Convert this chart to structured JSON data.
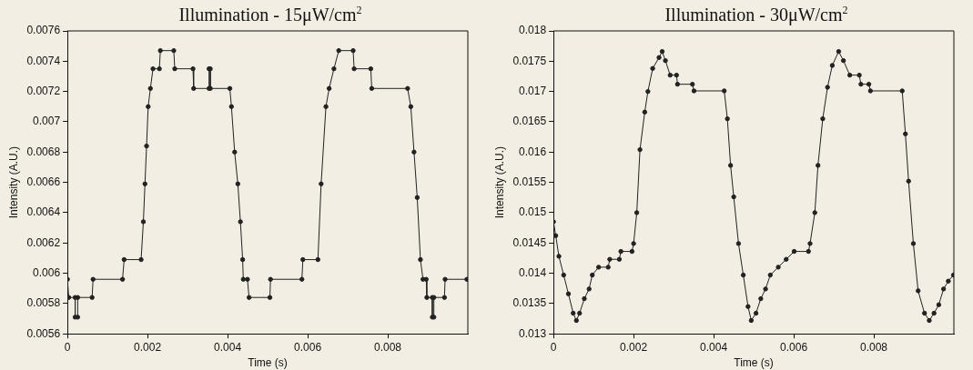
{
  "chart_data": [
    {
      "type": "line",
      "title": "Illumination - 15μW/cm$^{2}$",
      "xlabel": "Time (s)",
      "ylabel": "Intensity (A.U.)",
      "xlim": [
        0,
        0.01
      ],
      "xticks": [
        0,
        0.002,
        0.004,
        0.006,
        0.008
      ],
      "ylim": [
        0.0056,
        0.0076
      ],
      "yticks": [
        0.0056,
        0.0058,
        0.006,
        0.0062,
        0.0064,
        0.0066,
        0.0068,
        0.007,
        0.0072,
        0.0074,
        0.0076
      ],
      "grid": false,
      "legend": false,
      "marker": "circle",
      "line_style": "solid",
      "series": [
        {
          "color": "#222222",
          "x": [
            0,
            3.2e-05,
            0.000192,
            0.000192,
            0.000256,
            0.000256,
            0.000616,
            0.00064,
            0.001376,
            0.001416,
            0.00184,
            0.001896,
            0.001936,
            0.001976,
            0.002016,
            0.002072,
            0.002136,
            0.002296,
            0.00232,
            0.002656,
            0.00268,
            0.003136,
            0.003152,
            0.003536,
            0.003536,
            0.003568,
            0.003568,
            0.004056,
            0.004096,
            0.004176,
            0.004256,
            0.00432,
            0.004376,
            0.004392,
            0.004496,
            0.004536,
            0.005056,
            0.005072,
            0.005856,
            0.00588,
            0.006256,
            0.006336,
            0.006456,
            0.006536,
            0.006656,
            0.006776,
            0.007136,
            0.00716,
            0.007576,
            0.0076,
            0.008496,
            0.008576,
            0.008656,
            0.008736,
            0.008816,
            0.00888,
            0.00896,
            0.008976,
            0.009112,
            0.009112,
            0.009152,
            0.009152,
            0.009416,
            0.009432,
            0.009976
          ],
          "values": [
            0.00596,
            0.00584,
            0.00584,
            0.00571,
            0.00571,
            0.00584,
            0.00584,
            0.00596,
            0.00596,
            0.00609,
            0.00609,
            0.00634,
            0.00659,
            0.00684,
            0.0071,
            0.00722,
            0.00735,
            0.00735,
            0.00747,
            0.00747,
            0.00735,
            0.00735,
            0.00722,
            0.00722,
            0.00735,
            0.00735,
            0.00722,
            0.00722,
            0.0071,
            0.0068,
            0.00659,
            0.00634,
            0.00609,
            0.00596,
            0.00596,
            0.00584,
            0.00584,
            0.00596,
            0.00596,
            0.00609,
            0.00609,
            0.00659,
            0.0071,
            0.00722,
            0.00735,
            0.00747,
            0.00747,
            0.00735,
            0.00735,
            0.00722,
            0.00722,
            0.0071,
            0.0068,
            0.0065,
            0.00609,
            0.00596,
            0.00596,
            0.00584,
            0.00584,
            0.00571,
            0.00571,
            0.00584,
            0.00584,
            0.00596,
            0.00596
          ]
        }
      ]
    },
    {
      "type": "line",
      "title": "Illumination - 30μW/cm$^{2}$",
      "xlabel": "Time (s)",
      "ylabel": "Intensity (A.U.)",
      "xlim": [
        0,
        0.01
      ],
      "xticks": [
        0,
        0.002,
        0.004,
        0.006,
        0.008
      ],
      "ylim": [
        0.013,
        0.018
      ],
      "yticks": [
        0.013,
        0.0135,
        0.014,
        0.0145,
        0.015,
        0.0155,
        0.016,
        0.0165,
        0.017,
        0.0175,
        0.018
      ],
      "grid": false,
      "legend": false,
      "marker": "circle",
      "line_style": "solid",
      "series": [
        {
          "color": "#222222",
          "x": [
            0,
            5.6e-05,
            0.000135,
            0.000254,
            0.000373,
            0.000492,
            0.000572,
            0.000651,
            0.00077,
            0.000889,
            0.000969,
            0.001127,
            0.001366,
            0.001405,
            0.001644,
            0.001683,
            0.001961,
            0.002001,
            0.00208,
            0.00216,
            0.002279,
            0.002358,
            0.002477,
            0.002636,
            0.002715,
            0.002795,
            0.002914,
            0.003073,
            0.003097,
            0.00347,
            0.003509,
            0.004264,
            0.004343,
            0.004423,
            0.004502,
            0.004621,
            0.00474,
            0.004859,
            0.004939,
            0.005058,
            0.005177,
            0.005296,
            0.005415,
            0.005614,
            0.005812,
            0.006011,
            0.006368,
            0.006408,
            0.006527,
            0.006606,
            0.006725,
            0.006844,
            0.006963,
            0.007122,
            0.007241,
            0.0074,
            0.007638,
            0.007678,
            0.007876,
            0.007916,
            0.00871,
            0.008789,
            0.008869,
            0.008988,
            0.009107,
            0.009266,
            0.009385,
            0.009504,
            0.009623,
            0.009742,
            0.009861,
            0.00999
          ],
          "values": [
            0.01485,
            0.01462,
            0.01428,
            0.01397,
            0.01366,
            0.01334,
            0.01322,
            0.01334,
            0.01358,
            0.01374,
            0.01397,
            0.0141,
            0.0141,
            0.01423,
            0.01423,
            0.01436,
            0.01436,
            0.01449,
            0.015,
            0.01604,
            0.01666,
            0.017,
            0.01738,
            0.01756,
            0.01766,
            0.01751,
            0.01727,
            0.01727,
            0.01712,
            0.01712,
            0.01701,
            0.01701,
            0.01655,
            0.01578,
            0.01526,
            0.01449,
            0.01397,
            0.01345,
            0.01322,
            0.01334,
            0.01358,
            0.01374,
            0.01397,
            0.0141,
            0.01423,
            0.01436,
            0.01436,
            0.01449,
            0.015,
            0.01578,
            0.01655,
            0.01707,
            0.01743,
            0.01766,
            0.01751,
            0.01727,
            0.01727,
            0.01712,
            0.01712,
            0.01701,
            0.01701,
            0.0163,
            0.01552,
            0.01449,
            0.01371,
            0.01334,
            0.01322,
            0.01334,
            0.01348,
            0.01374,
            0.01387,
            0.01397
          ]
        }
      ]
    }
  ]
}
